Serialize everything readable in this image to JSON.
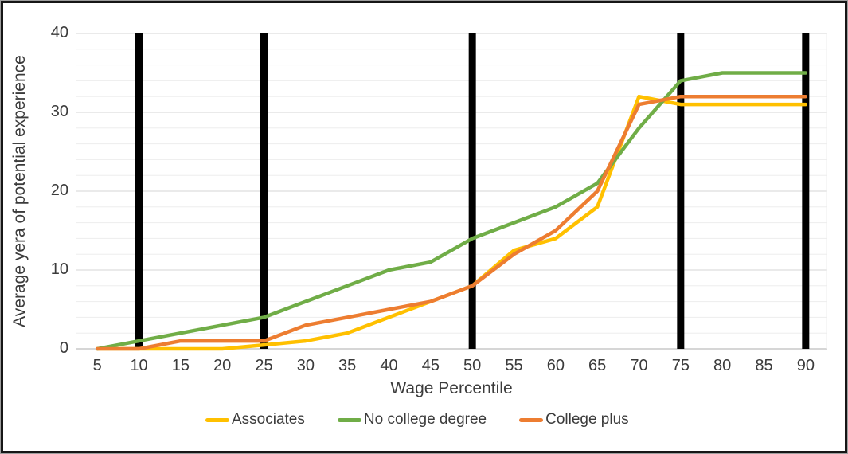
{
  "chart_data": {
    "type": "line",
    "title": "",
    "xlabel": "Wage Percentile",
    "ylabel": "Average yera of potential experience",
    "categories": [
      5,
      10,
      15,
      20,
      25,
      30,
      35,
      40,
      45,
      50,
      55,
      60,
      65,
      70,
      75,
      80,
      85,
      90
    ],
    "series": [
      {
        "name": "Associates",
        "color": "#FFC000",
        "values": [
          0,
          0,
          0,
          0,
          0.5,
          1,
          2,
          4,
          6,
          8,
          12.5,
          14,
          18,
          32,
          31,
          31,
          31,
          31
        ]
      },
      {
        "name": "No college degree",
        "color": "#70AD47",
        "values": [
          0,
          1,
          2,
          3,
          4,
          6,
          8,
          10,
          11,
          14,
          16,
          18,
          21,
          28,
          34,
          35,
          35,
          35
        ]
      },
      {
        "name": "College plus",
        "color": "#ED7D31",
        "values": [
          0,
          0,
          1,
          1,
          1,
          3,
          4,
          5,
          6,
          8,
          12,
          15,
          20,
          31,
          32,
          32,
          32,
          32
        ]
      }
    ],
    "highlight_bars": {
      "at_percentiles": [
        10,
        25,
        50,
        75,
        90
      ],
      "color": "#000000"
    },
    "y_axis": {
      "min": 0,
      "max": 40,
      "ticks": [
        0,
        10,
        20,
        30,
        40
      ],
      "minor_interval": 2,
      "major_interval": 10
    },
    "legend_position": "bottom",
    "grid": "horizontal",
    "colors": {
      "minor_gridline": "#ededed",
      "major_gridline": "#d6d6d6",
      "axis_line": "#c9c9c9",
      "text": "#3b3b3b"
    }
  }
}
